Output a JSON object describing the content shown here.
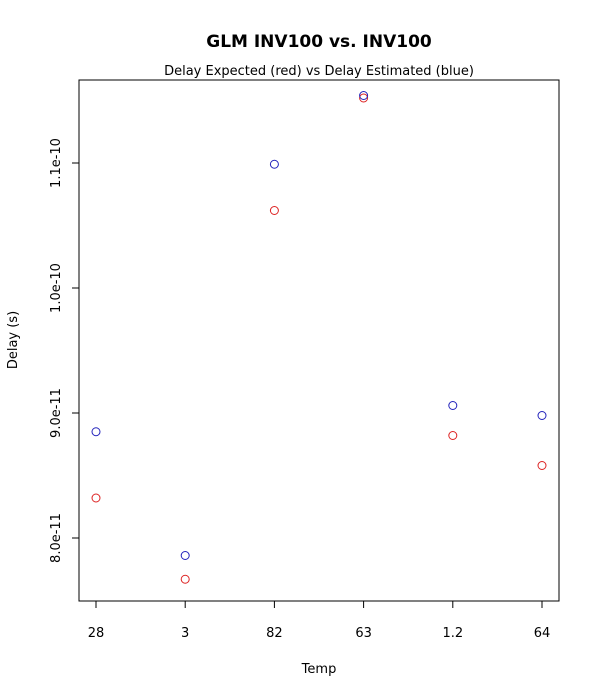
{
  "chart_data": {
    "type": "scatter",
    "title": "GLM INV100 vs. INV100",
    "subtitle": "Delay Expected (red) vs Delay Estimated (blue)",
    "xlabel": "Temp",
    "ylabel": "Delay (s)",
    "categories": [
      "28",
      "3",
      "82",
      "63",
      "1.2",
      "64"
    ],
    "y_ticks": [
      8e-11,
      9e-11,
      1e-10,
      1.1e-10
    ],
    "y_tick_labels": [
      "8.0e-11",
      "9.0e-11",
      "1.0e-10",
      "1.1e-10"
    ],
    "ylim": [
      7.5e-11,
      1.125e-10
    ],
    "grid": false,
    "legend": "none",
    "series": [
      {
        "color": "#dd2222",
        "values": [
          8.32e-11,
          7.67e-11,
          1.062e-10,
          1.152e-10,
          8.82e-11,
          8.58e-11
        ]
      },
      {
        "color": "#2222bb",
        "values": [
          8.85e-11,
          7.86e-11,
          1.099e-10,
          1.154e-10,
          9.06e-11,
          8.98e-11
        ]
      }
    ]
  }
}
